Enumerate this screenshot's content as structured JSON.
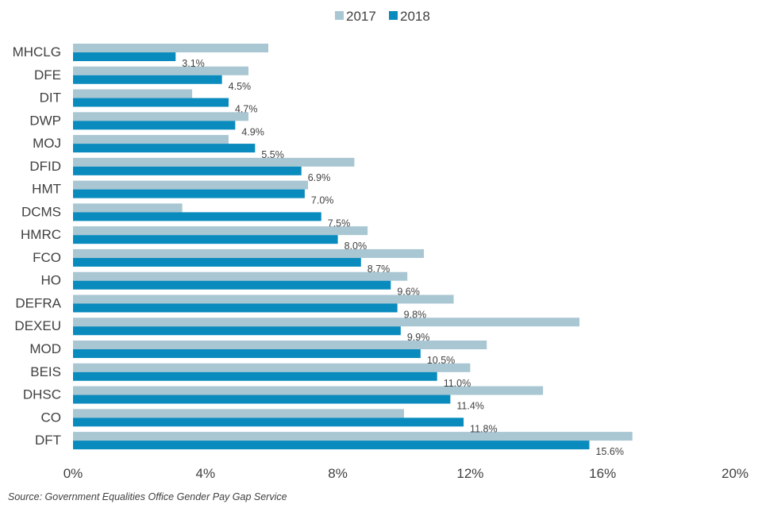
{
  "chart_data": {
    "type": "bar",
    "orientation": "horizontal",
    "title": "",
    "xlabel": "",
    "ylabel": "",
    "xlim": [
      0,
      20
    ],
    "x_ticks": [
      "0%",
      "4%",
      "8%",
      "12%",
      "16%",
      "20%"
    ],
    "x_tick_values": [
      0,
      4,
      8,
      12,
      16,
      20
    ],
    "grid": false,
    "legend_position": "top-center",
    "categories": [
      "MHCLG",
      "DFE",
      "DIT",
      "DWP",
      "MOJ",
      "DFID",
      "HMT",
      "DCMS",
      "HMRC",
      "FCO",
      "HO",
      "DEFRA",
      "DEXEU",
      "MOD",
      "BEIS",
      "DHSC",
      "CO",
      "DFT"
    ],
    "series": [
      {
        "name": "2017",
        "color": "#a9c6d3",
        "values": [
          5.9,
          5.3,
          3.6,
          5.3,
          4.7,
          8.5,
          7.1,
          3.3,
          8.9,
          10.6,
          10.1,
          11.5,
          15.3,
          12.5,
          12.0,
          14.2,
          10.0,
          16.9
        ]
      },
      {
        "name": "2018",
        "color": "#0a8bbd",
        "values": [
          3.1,
          4.5,
          4.7,
          4.9,
          5.5,
          6.9,
          7.0,
          7.5,
          8.0,
          8.7,
          9.6,
          9.8,
          9.9,
          10.5,
          11.0,
          11.4,
          11.8,
          15.6
        ],
        "data_labels": [
          "3.1%",
          "4.5%",
          "4.7%",
          "4.9%",
          "5.5%",
          "6.9%",
          "7.0%",
          "7.5%",
          "8.0%",
          "8.7%",
          "9.6%",
          "9.8%",
          "9.9%",
          "10.5%",
          "11.0%",
          "11.4%",
          "11.8%",
          "15.6%"
        ]
      }
    ]
  },
  "source_note": "Source: Government  Equalities Office Gender  Pay Gap Service"
}
